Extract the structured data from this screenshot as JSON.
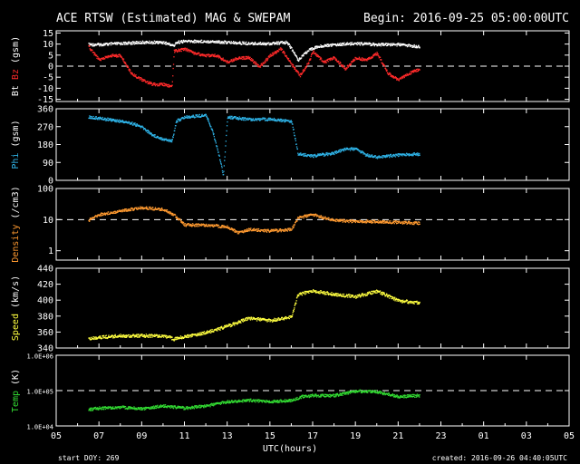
{
  "header": {
    "title": "ACE RTSW (Estimated) MAG & SWEPAM",
    "begin": "Begin: 2016-09-25 05:00:00UTC"
  },
  "footer": {
    "start_doy": "start DOY: 269",
    "created": "created: 2016-09-26 04:40:05UTC"
  },
  "colors": {
    "bt": "#ffffff",
    "bz": "#ff2a2a",
    "phi": "#2fb4e8",
    "density": "#ff9a30",
    "speed": "#ffff40",
    "temp": "#33dd33"
  },
  "chart_data": {
    "type": "scatter",
    "xlabel": "UTC(hours)",
    "x_ticks": [
      "05",
      "07",
      "09",
      "11",
      "13",
      "15",
      "17",
      "19",
      "21",
      "23",
      "01",
      "03",
      "05"
    ],
    "x_range_hours": [
      5,
      29
    ],
    "data_end_hours": 22,
    "panels": [
      {
        "id": "mag",
        "ylabel_parts": [
          {
            "text": "Bt",
            "color": "bt"
          },
          {
            "text": "Bz",
            "color": "bz"
          },
          {
            "text": "(gsm)",
            "color": "bt"
          }
        ],
        "scale": "linear",
        "ylim": [
          -16,
          16
        ],
        "ticks": [
          "15",
          "10",
          "5",
          "0",
          "-5",
          "-10",
          "-15"
        ],
        "tick_values": [
          15,
          10,
          5,
          0,
          -5,
          -10,
          -15
        ],
        "dashed_line": 0,
        "series": [
          {
            "color": "bt",
            "points": [
              [
                6.5,
                10
              ],
              [
                7,
                10
              ],
              [
                8,
                10.5
              ],
              [
                9,
                11
              ],
              [
                10,
                11
              ],
              [
                10.5,
                9.5
              ],
              [
                10.6,
                11
              ],
              [
                11,
                11.5
              ],
              [
                12,
                11.5
              ],
              [
                13,
                11
              ],
              [
                14,
                10.5
              ],
              [
                15,
                10.5
              ],
              [
                15.8,
                11
              ],
              [
                16,
                8
              ],
              [
                16.3,
                3
              ],
              [
                16.6,
                6
              ],
              [
                17,
                8.5
              ],
              [
                17.5,
                9.5
              ],
              [
                18,
                10
              ],
              [
                19,
                10.5
              ],
              [
                20,
                10
              ],
              [
                21,
                10
              ],
              [
                22,
                9
              ]
            ]
          },
          {
            "color": "bz",
            "points": [
              [
                6.5,
                9
              ],
              [
                7,
                3
              ],
              [
                7.5,
                5
              ],
              [
                8,
                5
              ],
              [
                8.5,
                -3
              ],
              [
                9,
                -6
              ],
              [
                9.5,
                -8
              ],
              [
                10,
                -8
              ],
              [
                10.4,
                -9
              ],
              [
                10.5,
                7
              ],
              [
                11,
                8
              ],
              [
                11.5,
                6
              ],
              [
                12,
                5
              ],
              [
                12.5,
                5
              ],
              [
                13,
                2
              ],
              [
                13.5,
                4
              ],
              [
                14,
                4
              ],
              [
                14.5,
                0
              ],
              [
                15,
                5
              ],
              [
                15.5,
                8
              ],
              [
                16,
                1
              ],
              [
                16.4,
                -4
              ],
              [
                16.8,
                2
              ],
              [
                17,
                7
              ],
              [
                17.5,
                2
              ],
              [
                18,
                4
              ],
              [
                18.5,
                -1
              ],
              [
                19,
                4
              ],
              [
                19.5,
                3
              ],
              [
                20,
                6
              ],
              [
                20.5,
                -3
              ],
              [
                21,
                -6
              ],
              [
                21.5,
                -3
              ],
              [
                22,
                -1
              ]
            ]
          }
        ]
      },
      {
        "id": "phi",
        "ylabel_parts": [
          {
            "text": "Phi",
            "color": "phi"
          },
          {
            "text": "(gsm)",
            "color": "bt"
          }
        ],
        "scale": "linear",
        "ylim": [
          0,
          360
        ],
        "ticks": [
          "360",
          "270",
          "180",
          "90",
          "0"
        ],
        "tick_values": [
          360,
          270,
          180,
          90,
          0
        ],
        "series": [
          {
            "color": "phi",
            "points": [
              [
                6.5,
                320
              ],
              [
                7,
                315
              ],
              [
                8,
                300
              ],
              [
                8.5,
                290
              ],
              [
                9,
                270
              ],
              [
                9.5,
                230
              ],
              [
                10,
                210
              ],
              [
                10.4,
                200
              ],
              [
                10.6,
                300
              ],
              [
                11,
                320
              ],
              [
                12,
                330
              ],
              [
                12.3,
                250
              ],
              [
                12.6,
                130
              ],
              [
                12.8,
                30
              ],
              [
                13,
                320
              ],
              [
                14,
                310
              ],
              [
                15,
                310
              ],
              [
                16,
                300
              ],
              [
                16.3,
                135
              ],
              [
                17,
                125
              ],
              [
                18,
                140
              ],
              [
                18.5,
                160
              ],
              [
                19,
                160
              ],
              [
                19.5,
                130
              ],
              [
                20,
                120
              ],
              [
                21,
                130
              ],
              [
                22,
                135
              ]
            ]
          }
        ]
      },
      {
        "id": "density",
        "ylabel_parts": [
          {
            "text": "Density",
            "color": "density"
          },
          {
            "text": "(/cm3)",
            "color": "bt"
          }
        ],
        "scale": "log",
        "ylim": [
          0.5,
          100
        ],
        "ticks": [
          "100",
          "10",
          "1"
        ],
        "tick_values": [
          100,
          10,
          1
        ],
        "dashed_line": 10,
        "series": [
          {
            "color": "density",
            "points": [
              [
                6.5,
                10
              ],
              [
                7,
                15
              ],
              [
                8,
                20
              ],
              [
                9,
                25
              ],
              [
                10,
                22
              ],
              [
                10.5,
                15
              ],
              [
                11,
                7
              ],
              [
                12,
                7
              ],
              [
                13,
                6
              ],
              [
                13.5,
                4
              ],
              [
                14,
                5
              ],
              [
                15,
                4.5
              ],
              [
                16,
                5
              ],
              [
                16.3,
                12
              ],
              [
                17,
                15
              ],
              [
                17.5,
                12
              ],
              [
                18,
                10
              ],
              [
                19,
                9
              ],
              [
                20,
                9
              ],
              [
                21,
                8.5
              ],
              [
                22,
                8
              ]
            ]
          }
        ]
      },
      {
        "id": "speed",
        "ylabel_parts": [
          {
            "text": "Speed",
            "color": "speed"
          },
          {
            "text": "(km/s)",
            "color": "bt"
          }
        ],
        "scale": "linear",
        "ylim": [
          340,
          440
        ],
        "ticks": [
          "440",
          "420",
          "400",
          "380",
          "360",
          "340"
        ],
        "tick_values": [
          440,
          420,
          400,
          380,
          360,
          340
        ],
        "series": [
          {
            "color": "speed",
            "points": [
              [
                6.5,
                352
              ],
              [
                7,
                354
              ],
              [
                8,
                356
              ],
              [
                9,
                356
              ],
              [
                10,
                356
              ],
              [
                10.5,
                352
              ],
              [
                11,
                355
              ],
              [
                12,
                360
              ],
              [
                13,
                368
              ],
              [
                14,
                378
              ],
              [
                15,
                375
              ],
              [
                16,
                380
              ],
              [
                16.3,
                408
              ],
              [
                17,
                412
              ],
              [
                18,
                408
              ],
              [
                19,
                405
              ],
              [
                20,
                412
              ],
              [
                21,
                400
              ],
              [
                22,
                397
              ]
            ]
          }
        ]
      },
      {
        "id": "temp",
        "ylabel_parts": [
          {
            "text": "Temp",
            "color": "temp"
          },
          {
            "text": "(K)",
            "color": "bt"
          }
        ],
        "scale": "log",
        "ylim": [
          10000,
          1000000
        ],
        "ticks": [
          "1.0E+06",
          "1.0E+05",
          "1.0E+04"
        ],
        "tick_values": [
          1000000,
          100000,
          10000
        ],
        "dashed_line": 100000,
        "series": [
          {
            "color": "temp",
            "points": [
              [
                6.5,
                30000
              ],
              [
                7,
                33000
              ],
              [
                8,
                35000
              ],
              [
                9,
                32000
              ],
              [
                10,
                38000
              ],
              [
                11,
                33000
              ],
              [
                12,
                38000
              ],
              [
                13,
                50000
              ],
              [
                14,
                55000
              ],
              [
                15,
                50000
              ],
              [
                16,
                55000
              ],
              [
                16.5,
                70000
              ],
              [
                17,
                75000
              ],
              [
                18,
                75000
              ],
              [
                19,
                100000
              ],
              [
                20,
                95000
              ],
              [
                21,
                70000
              ],
              [
                22,
                75000
              ]
            ]
          }
        ]
      }
    ]
  }
}
